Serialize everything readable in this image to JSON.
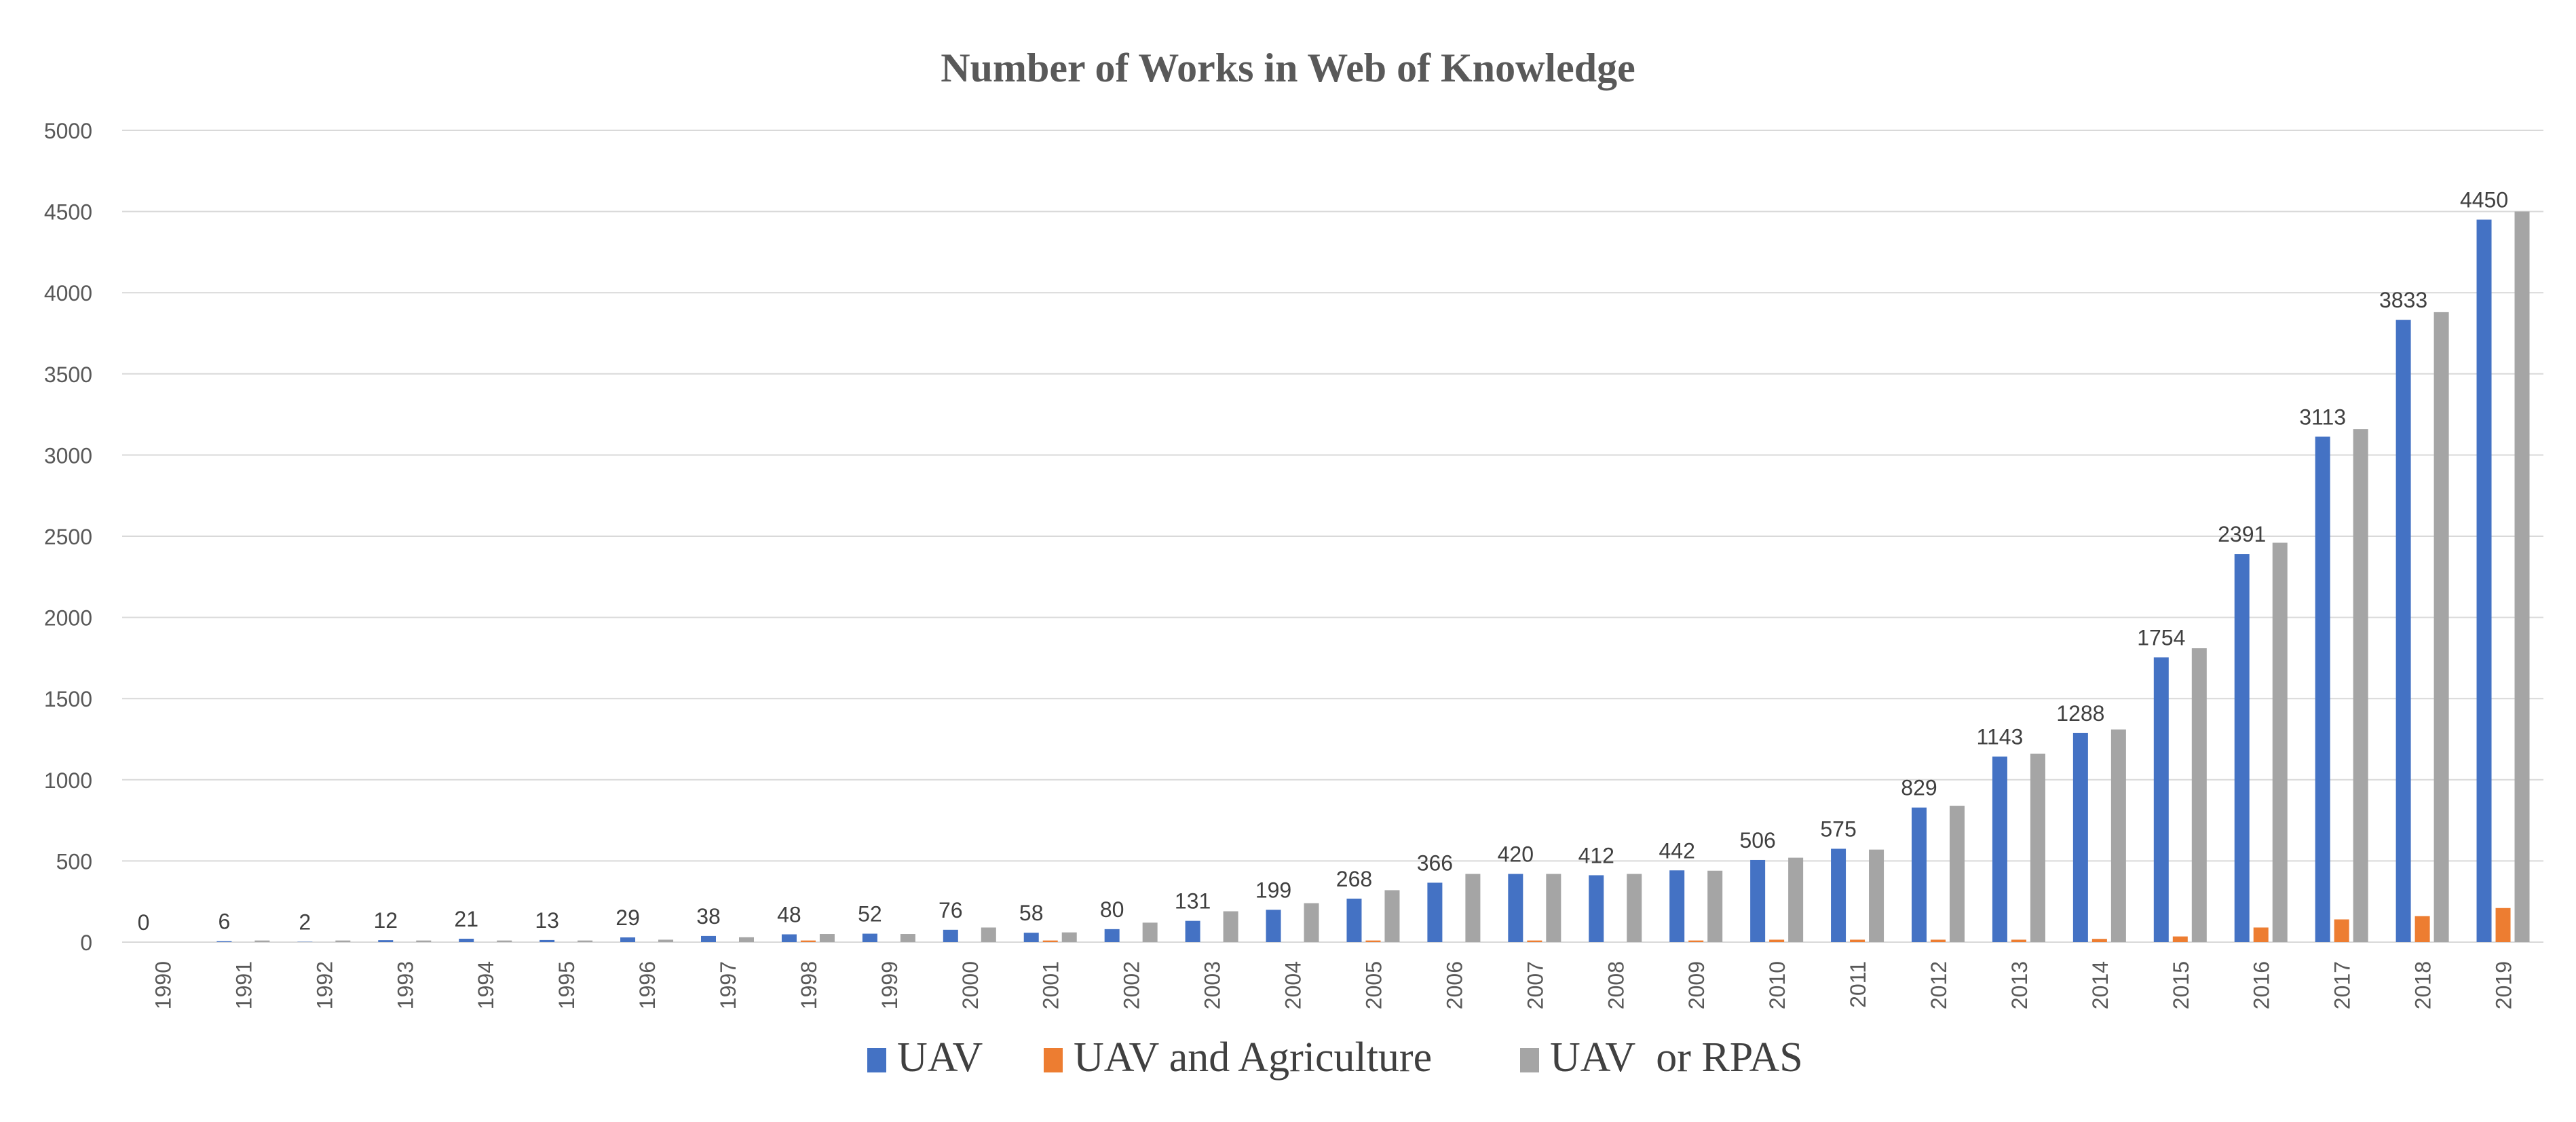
{
  "chart_data": {
    "type": "bar",
    "title": "Number of Works in Web of Knowledge",
    "xlabel": "",
    "ylabel": "",
    "ylim": [
      0,
      5000
    ],
    "yticks": [
      0,
      500,
      1000,
      1500,
      2000,
      2500,
      3000,
      3500,
      4000,
      4500,
      5000
    ],
    "grid": true,
    "legend_position": "bottom",
    "categories": [
      "1990",
      "1991",
      "1992",
      "1993",
      "1994",
      "1995",
      "1996",
      "1997",
      "1998",
      "1999",
      "2000",
      "2001",
      "2002",
      "2003",
      "2004",
      "2005",
      "2006",
      "2007",
      "2008",
      "2009",
      "2010",
      "2011",
      "2012",
      "2013",
      "2014",
      "2015",
      "2016",
      "2017",
      "2018",
      "2019"
    ],
    "series": [
      {
        "name": "UAV",
        "color": "#4472C4",
        "values": [
          0,
          6,
          2,
          12,
          21,
          13,
          29,
          38,
          48,
          52,
          76,
          58,
          80,
          131,
          199,
          268,
          366,
          420,
          412,
          442,
          506,
          575,
          829,
          1143,
          1288,
          1754,
          2391,
          3113,
          3833,
          4450
        ],
        "data_labels": [
          "0",
          "6",
          "2",
          "12",
          "21",
          "13",
          "29",
          "38",
          "48",
          "52",
          "76",
          "58",
          "80",
          "131",
          "199",
          "268",
          "366",
          "420",
          "412",
          "442",
          "506",
          "575",
          "829",
          "1143",
          "1288",
          "1754",
          "2391",
          "3113",
          "3833",
          "4450"
        ]
      },
      {
        "name": "UAV and Agriculture",
        "color": "#ED7D31",
        "values": [
          0,
          0,
          0,
          0,
          0,
          0,
          0,
          0,
          10,
          0,
          0,
          10,
          0,
          0,
          0,
          10,
          0,
          10,
          0,
          10,
          15,
          15,
          15,
          15,
          20,
          35,
          90,
          140,
          160,
          210
        ]
      },
      {
        "name": "UAV  or RPAS",
        "color": "#A5A5A5",
        "values": [
          0,
          10,
          10,
          10,
          10,
          10,
          15,
          30,
          50,
          50,
          90,
          60,
          120,
          190,
          240,
          320,
          420,
          420,
          420,
          440,
          520,
          570,
          840,
          1160,
          1310,
          1810,
          2460,
          3160,
          3880,
          4500
        ]
      }
    ]
  }
}
